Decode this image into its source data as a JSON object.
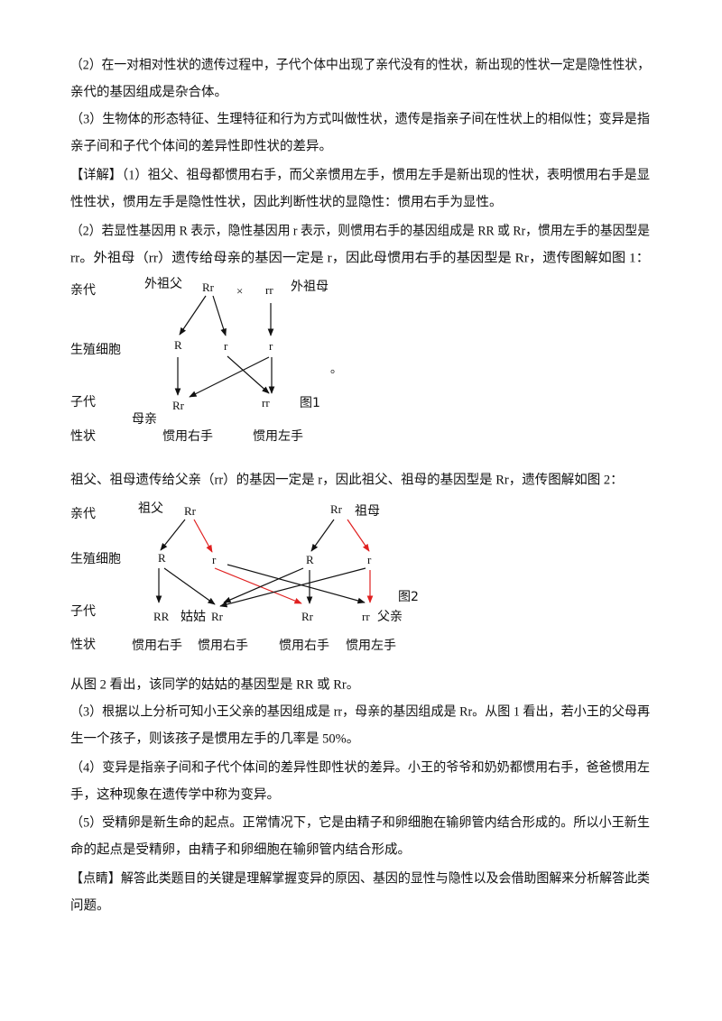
{
  "text": {
    "lines_before": [
      "（2）在一对相对性状的遗传过程中，子代个体中出现了亲代没有的性状，新出现的性状一定是隐性性状，",
      "亲代的基因组成是杂合体。",
      "（3）生物体的形态特征、生理特征和行为方式叫做性状，遗传是指亲子间在性状上的相似性；变异是指",
      "亲子间和子代个体间的差异性即性状的差异。",
      "【详解】（1）祖父、祖母都惯用右手，而父亲惯用左手，惯用左手是新出现的性状，表明惯用右手是显",
      "性性状，惯用左手是隐性性状，因此判断性状的显隐性：惯用右手为显性。",
      "（2）若显性基因用 R 表示，隐性基因用 r 表示，则惯用右手的基因组成是 RR 或 Rr，惯用左手的基因型是",
      "rr。外祖母（rr）遗传给母亲的基因一定是 r，因此母惯用右手的基因型是 Rr，遗传图解如图 1："
    ],
    "line_between": "祖父、祖母遗传给父亲（rr）的基因一定是 r，因此祖父、祖母的基因型是 Rr，遗传图解如图 2：",
    "lines_after": [
      "从图 2 看出，该同学的姑姑的基因型是 RR 或 Rr。",
      "（3）根据以上分析可知小王父亲的基因组成是 rr，母亲的基因组成是 Rr。从图 1 看出，若小王的父母再",
      "生一个孩子，则该孩子是惯用左手的几率是 50%。",
      "（4）变异是指亲子间和子代个体间的差异性即性状的差异。小王的爷爷和奶奶都惯用右手，爸爸惯用左",
      "手，这种现象在遗传学中称为变异。",
      "（5）受精卵是新生命的起点。正常情况下，它是由精子和卵细胞在输卵管内结合形成的。所以小王新生",
      "命的起点是受精卵，由精子和卵细胞在输卵管内结合形成。",
      "【点睛】解答此类题目的关键是理解掌握变异的原因、基因的显性与隐性以及会借助图解来分析解答此类",
      "问题。"
    ]
  },
  "figure1": {
    "row_labels": [
      "亲代",
      "生殖细胞",
      "子代",
      "性状"
    ],
    "grandfather": "外祖父",
    "parent_left": "Rr",
    "cross": "×",
    "parent_right": "rr",
    "grandmother": "外祖母",
    "gametes": [
      "R",
      "r",
      "r"
    ],
    "offspring": [
      "Rr",
      "rr"
    ],
    "caption": "图1",
    "dot": "。",
    "mother": "母亲",
    "traits": [
      "惯用右手",
      "惯用左手"
    ]
  },
  "figure2": {
    "row_labels": [
      "亲代",
      "生殖细胞",
      "子代",
      "性状"
    ],
    "grandfather": "祖父",
    "parent_left": "Rr",
    "parent_right": "Rr",
    "grandmother": "祖母",
    "gametes": [
      "R",
      "r",
      "R",
      "r"
    ],
    "caption": "图2",
    "offspring": [
      "RR",
      "Rr",
      "Rr",
      "rr"
    ],
    "aunt": "姑姑",
    "father": "父亲",
    "traits": [
      "惯用右手",
      "惯用右手",
      "惯用右手",
      "惯用左手"
    ]
  }
}
